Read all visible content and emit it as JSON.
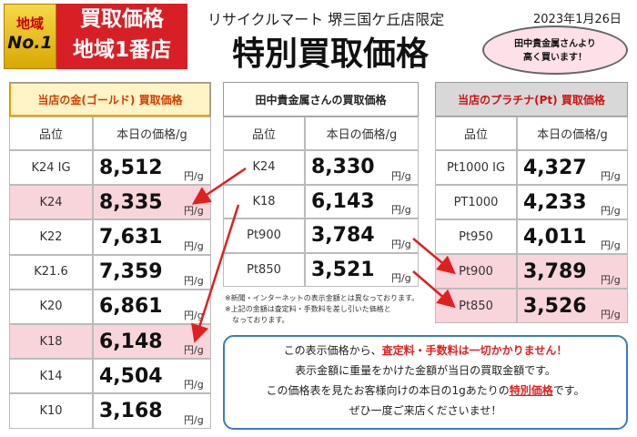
{
  "header": {
    "badge_top": "地域",
    "badge_bottom": "No.1",
    "banner_line1": "買取価格",
    "banner_line2": "地域1番店",
    "store": "リサイクルマート 堺三国ケ丘店限定",
    "date": "2023年1月26日",
    "title": "特別買取価格",
    "bubble_line1": "田中貴金属さんより",
    "bubble_line2": "高く買います！"
  },
  "gold_table": {
    "title": "当店の金(ゴールド) 買取価格",
    "columns": [
      "品位",
      "本日の価格/g"
    ],
    "unit": "円/g",
    "rows": [
      [
        "K24 IG",
        "8,512"
      ],
      [
        "K24",
        "8,335"
      ],
      [
        "K22",
        "7,631"
      ],
      [
        "K21.6",
        "7,359"
      ],
      [
        "K20",
        "6,861"
      ],
      [
        "K18",
        "6,148"
      ],
      [
        "K14",
        "4,504"
      ],
      [
        "K10",
        "3,168"
      ]
    ]
  },
  "tanaka_table": {
    "title": "田中貴金属さんの買取価格",
    "columns": [
      "品位",
      "本日の価格/g"
    ],
    "unit": "円/g",
    "rows": [
      [
        "K24",
        "8,330"
      ],
      [
        "K18",
        "6,143"
      ],
      [
        "Pt900",
        "3,784"
      ],
      [
        "Pt850",
        "3,521"
      ]
    ],
    "notes": [
      "※新聞・インターネットの表示金額とは異なっております。",
      "※上記の金額は査定料・手数料を差し引いた価格と",
      "なっております。"
    ]
  },
  "platinum_table": {
    "title": "当店のプラチナ(Pt) 買取価格",
    "columns": [
      "品位",
      "本日の価格/g"
    ],
    "unit": "円/g",
    "rows": [
      [
        "Pt1000 IG",
        "4,327"
      ],
      [
        "PT1000",
        "4,233"
      ],
      [
        "Pt950",
        "4,011"
      ],
      [
        "Pt900",
        "3,789"
      ],
      [
        "Pt850",
        "3,526"
      ]
    ]
  },
  "notice": {
    "lines": [
      [
        "この表示価格から、",
        "査定料・手数料は一切かかりません！"
      ],
      [
        "表示金額に重量をかけた金額が当日の買取金額です。"
      ],
      [
        "この価格表を見たお客様向けの本日の1gあたりの",
        "特別価格",
        "です。"
      ],
      [
        "ぜひ一度ご来店くださいませ！"
      ]
    ]
  }
}
